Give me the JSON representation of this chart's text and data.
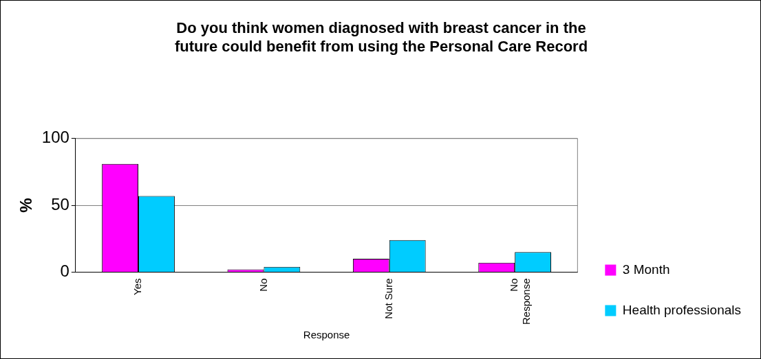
{
  "chart_data": {
    "type": "bar",
    "title": "Do you think women diagnosed with breast cancer in the future could benefit from using the Personal Care Record",
    "xlabel": "Response",
    "ylabel": "%",
    "categories": [
      "Yes",
      "No",
      "Not Sure",
      "No Response"
    ],
    "series": [
      {
        "name": "3 Month",
        "color": "#ff00ff",
        "values": [
          81,
          2,
          10,
          7
        ]
      },
      {
        "name": "Health professionals",
        "color": "#00ccff",
        "values": [
          57,
          4,
          24,
          15
        ]
      }
    ],
    "ylim": [
      0,
      100
    ],
    "yticks": [
      0,
      50,
      100
    ],
    "grid": "y",
    "legend": "right"
  }
}
